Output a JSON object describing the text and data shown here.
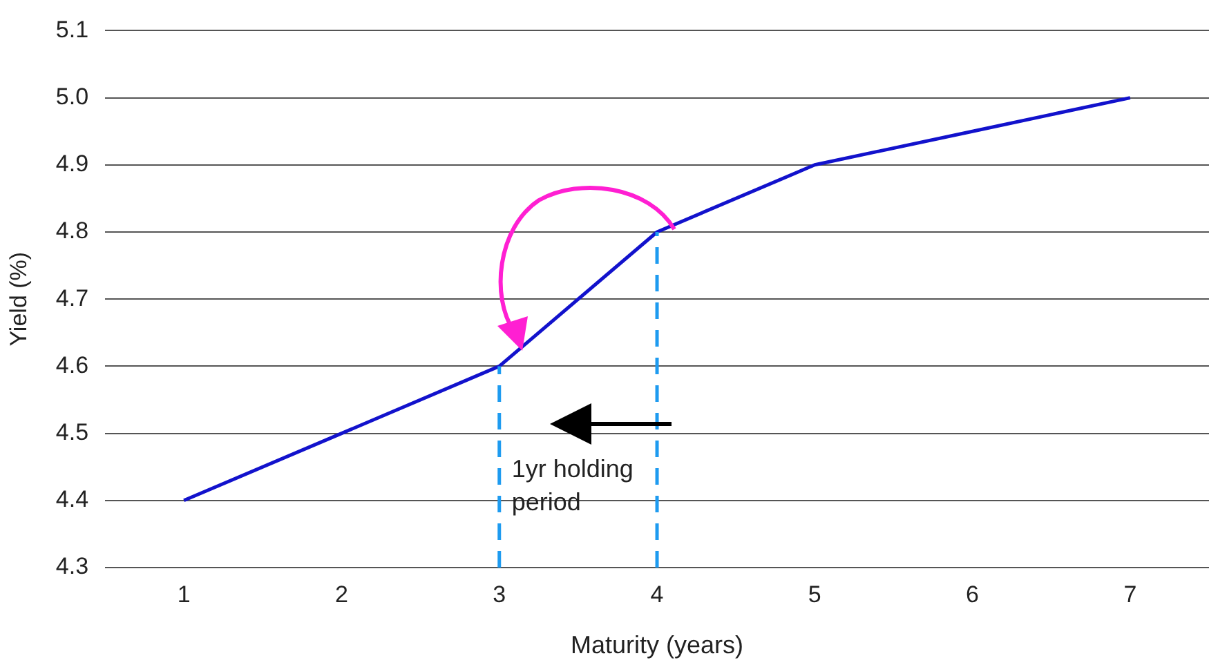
{
  "chart_data": {
    "type": "line",
    "xlabel": "Maturity (years)",
    "ylabel": "Yield (%)",
    "categories": [
      "1",
      "2",
      "3",
      "4",
      "5",
      "6",
      "7"
    ],
    "series": [
      {
        "color": "#1212cc",
        "values": [
          4.4,
          4.5,
          4.6,
          4.8,
          4.9,
          4.95,
          5.0
        ]
      }
    ],
    "ylim": [
      4.3,
      5.1
    ],
    "yticks": [
      4.3,
      4.4,
      4.5,
      4.6,
      4.7,
      4.8,
      4.9,
      {
        "value": 5.0,
        "label": "5.0"
      },
      5.1
    ],
    "grid": "y",
    "legend": false,
    "marker": "none",
    "line_style": "solid",
    "ref_lines": [
      {
        "axis": "x",
        "value": "3",
        "color": "#1e9bf0",
        "line_style": "dashed"
      },
      {
        "axis": "x",
        "value": "4",
        "color": "#1e9bf0",
        "line_style": "dashed"
      }
    ],
    "annotations": [
      {
        "text": "1yr holding period",
        "x": "3",
        "y": 4.42
      }
    ]
  }
}
